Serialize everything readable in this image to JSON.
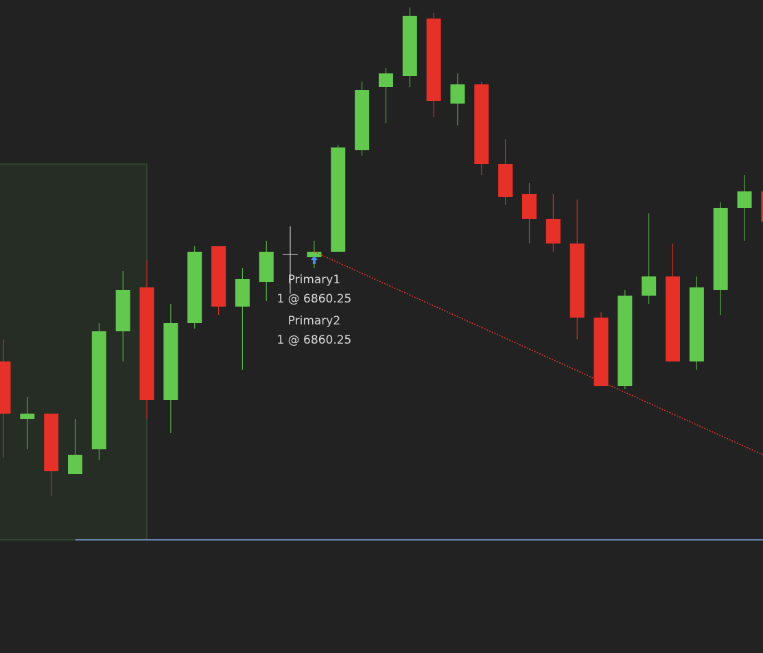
{
  "chart_data": {
    "type": "candlestick",
    "open": [
      6850.25,
      6845,
      6845.5,
      6840,
      6842.25,
      6853,
      6857,
      6846.75,
      6853.75,
      6860.75,
      6855.25,
      6857.5,
      null,
      6859.75,
      6860.25,
      6869.5,
      6875.25,
      6876.25,
      6881.5,
      6873.75,
      6875.5,
      6868.25,
      6865.5,
      6863.25,
      6861,
      6854.25,
      6848,
      6856.25,
      6858,
      6850.25,
      6856.75,
      6864.25,
      6865.75
    ],
    "high": [
      6852.25,
      6847,
      6845.5,
      6845,
      6853.75,
      6858.5,
      6859.5,
      6855.5,
      6860.75,
      6860.75,
      6858.75,
      6861.25,
      null,
      6861.25,
      6870,
      6875.75,
      6877,
      6882.5,
      6882,
      6876.5,
      6875.75,
      6870.5,
      6866.5,
      6865.5,
      6865,
      6854.75,
      6856.75,
      6863.75,
      6861,
      6858,
      6864.75,
      6867.25,
      6866.5
    ],
    "low": [
      6841.5,
      6842.25,
      6838,
      6840,
      6841.25,
      6850.25,
      6845,
      6843.75,
      6853.25,
      6854.5,
      6849.5,
      6855.75,
      null,
      6858.75,
      6860.25,
      6869,
      6872,
      6875.25,
      6872.5,
      6871.75,
      6867.25,
      6864.5,
      6861,
      6860.25,
      6852.25,
      6848,
      6847.75,
      6855.5,
      6850.25,
      6849.5,
      6854.5,
      6861.25,
      6863
    ],
    "close": [
      6845.5,
      6845.5,
      6840.25,
      6841.75,
      6853,
      6856.75,
      6846.75,
      6853.75,
      6860.25,
      6855.25,
      6857.75,
      6860.25,
      null,
      6860.25,
      6869.75,
      6875,
      6876.5,
      6881.75,
      6874,
      6875.5,
      6868.25,
      6865.25,
      6863.25,
      6861,
      6854.25,
      6848,
      6856.25,
      6858,
      6850.25,
      6857,
      6864.25,
      6865.75,
      6863
    ],
    "up_color": "#62c94e",
    "down_color": "#e53128",
    "ylim": [
      6823.6875,
      6883.1875
    ],
    "zone": {
      "high": 6868.25,
      "low": 6834,
      "color": "#3b5e36"
    },
    "price_line": {
      "value": 6834,
      "color": "#7fa6e0"
    },
    "trend_line": {
      "values": [
        6860.25,
        6841.75
      ],
      "color": "#e53128"
    },
    "executions": [
      {
        "name": "Primary1",
        "label": "1 @ 6860.25"
      },
      {
        "name": "Primary2",
        "label": "1 @ 6860.25"
      }
    ]
  }
}
